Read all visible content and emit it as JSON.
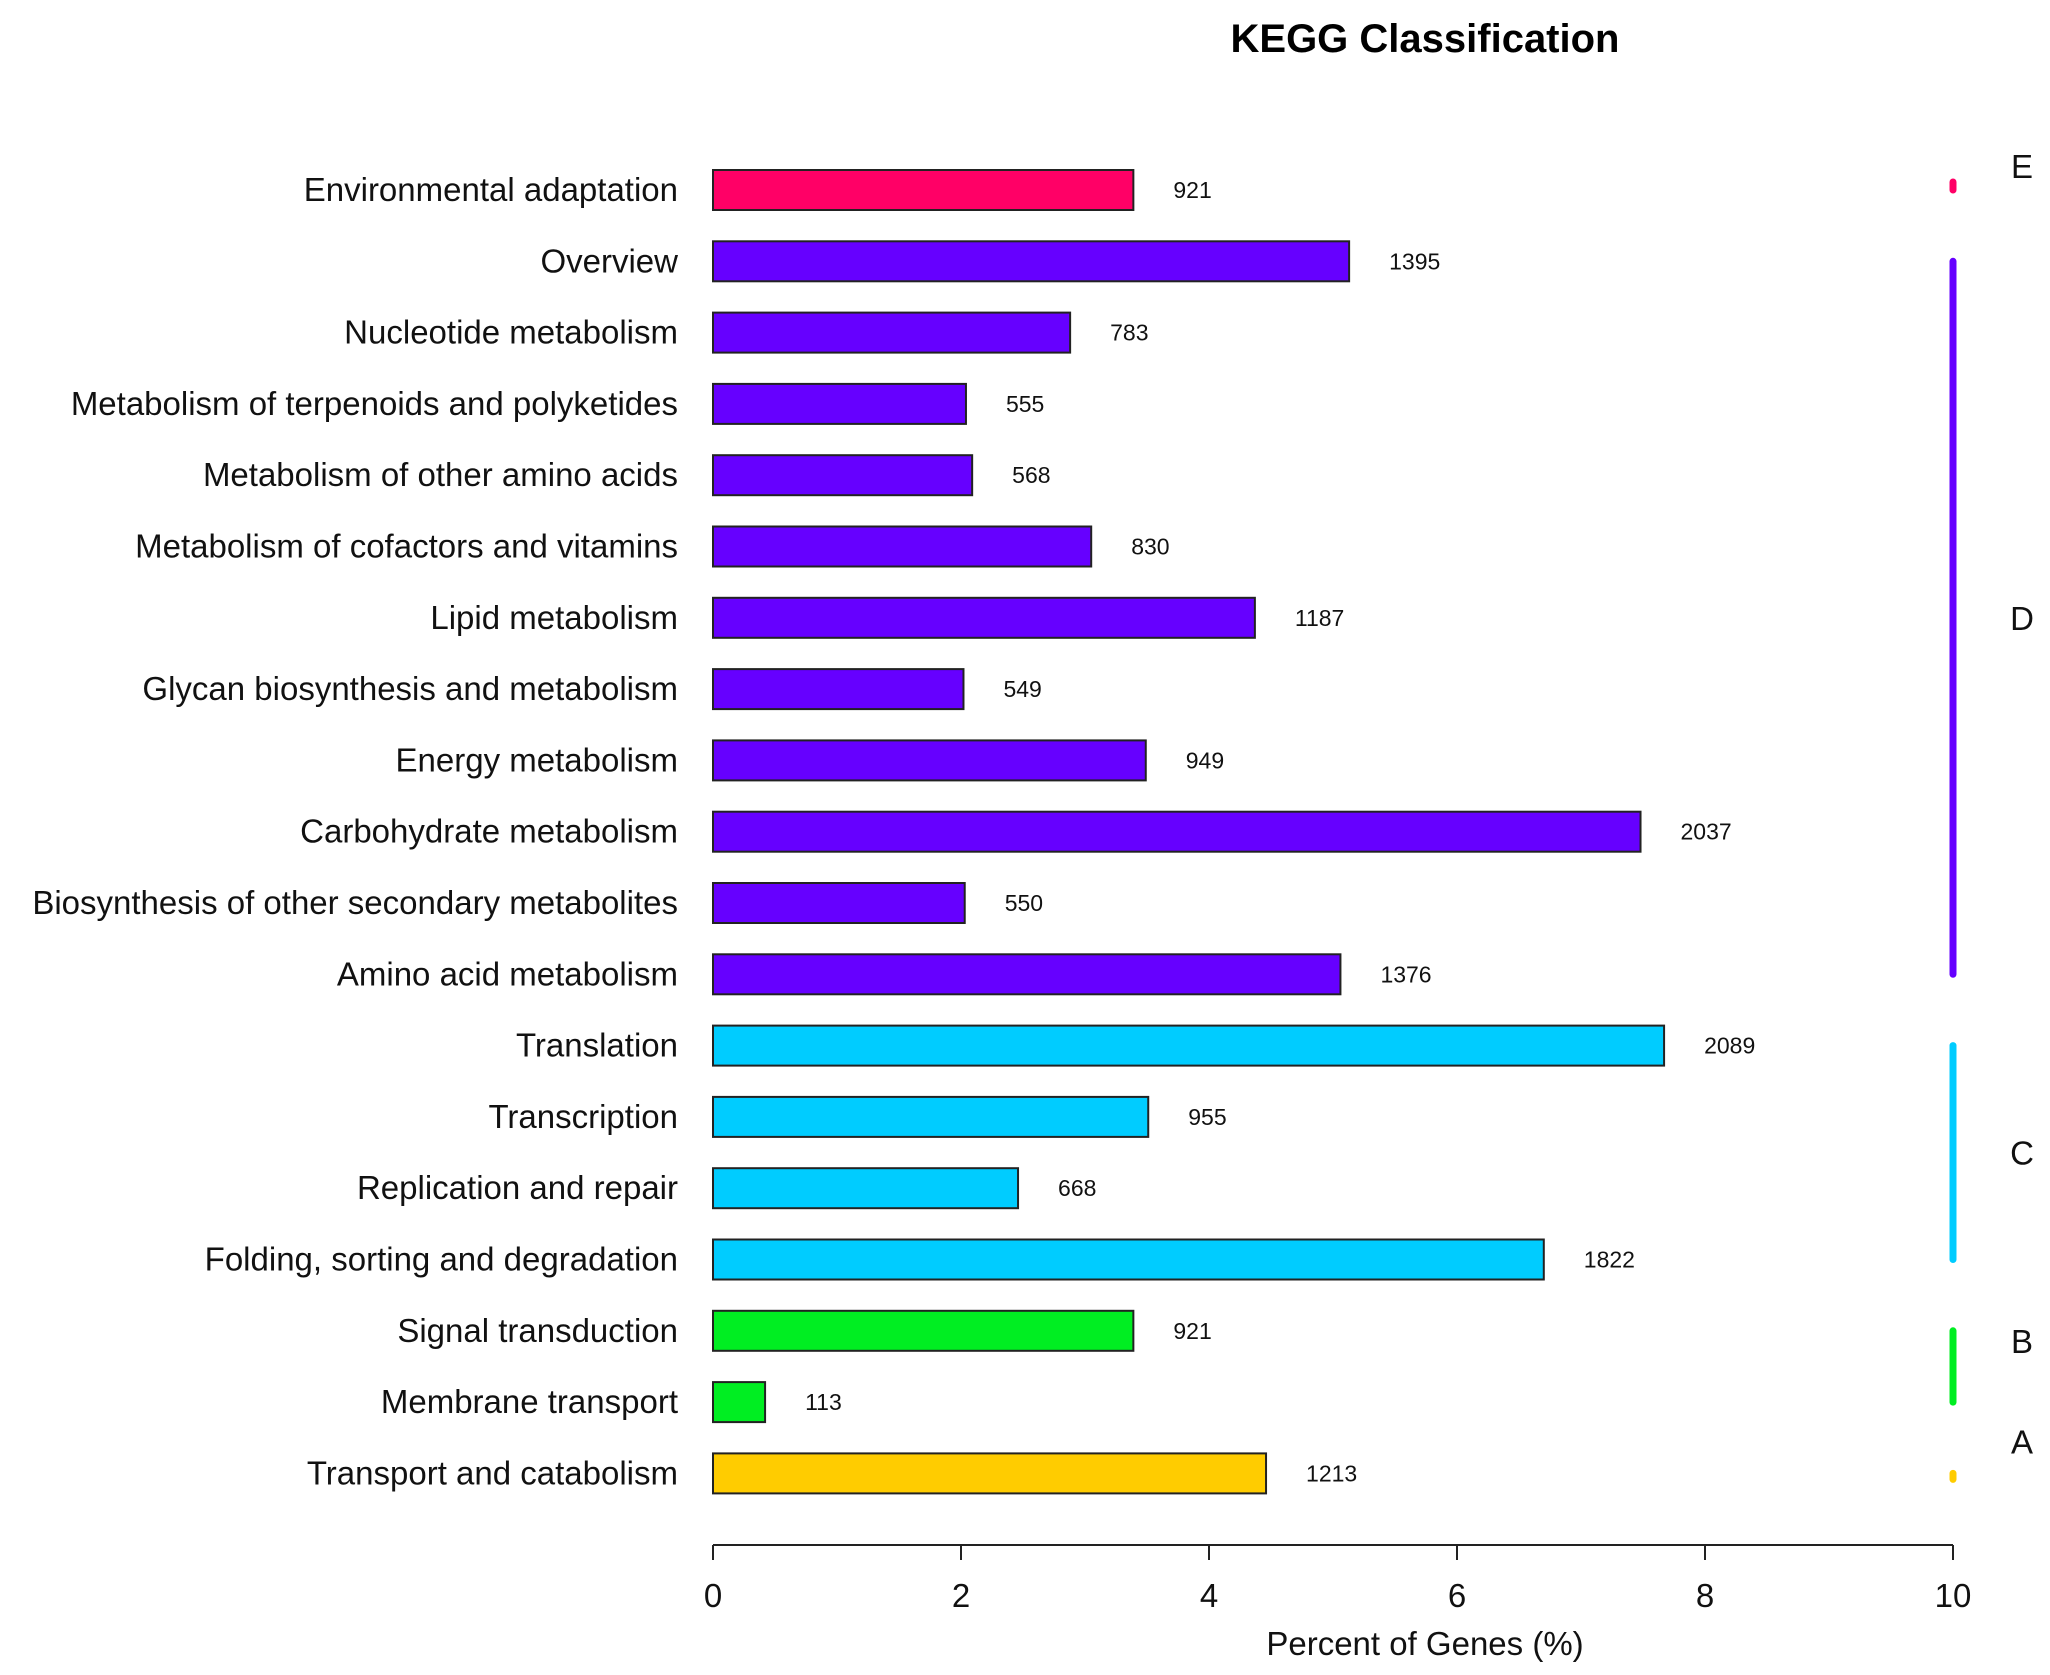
{
  "chart_data": {
    "type": "bar",
    "orientation": "horizontal",
    "title": "KEGG Classification",
    "xlabel": "Percent of Genes (%)",
    "ylabel": "",
    "xlim": [
      0,
      10
    ],
    "xticks": [
      0,
      2,
      4,
      6,
      8,
      10
    ],
    "grid": false,
    "categories": [
      "Environmental adaptation",
      "Overview",
      "Nucleotide metabolism",
      "Metabolism of terpenoids and polyketides",
      "Metabolism of other amino acids",
      "Metabolism of cofactors and vitamins",
      "Lipid metabolism",
      "Glycan biosynthesis and metabolism",
      "Energy metabolism",
      "Carbohydrate metabolism",
      "Biosynthesis of other secondary metabolites",
      "Amino acid metabolism",
      "Translation",
      "Transcription",
      "Replication and repair",
      "Folding, sorting and degradation",
      "Signal transduction",
      "Membrane transport",
      "Transport and catabolism"
    ],
    "values": [
      3.39,
      5.13,
      2.88,
      2.04,
      2.09,
      3.05,
      4.37,
      2.02,
      3.49,
      7.48,
      2.03,
      5.06,
      7.67,
      3.51,
      2.46,
      6.7,
      3.39,
      0.42,
      4.46
    ],
    "counts": [
      "921",
      "1395",
      "783",
      "555",
      "568",
      "830",
      "1187",
      "549",
      "949",
      "2037",
      "550",
      "1376",
      "2089",
      "955",
      "668",
      "1822",
      "921",
      "113",
      "1213"
    ],
    "groups": [
      "E",
      "D",
      "D",
      "D",
      "D",
      "D",
      "D",
      "D",
      "D",
      "D",
      "D",
      "D",
      "C",
      "C",
      "C",
      "C",
      "B",
      "B",
      "A"
    ],
    "group_legend": [
      {
        "label": "E",
        "color": "#ff0066"
      },
      {
        "label": "D",
        "color": "#6600ff"
      },
      {
        "label": "C",
        "color": "#00ccff"
      },
      {
        "label": "B",
        "color": "#00ee22"
      },
      {
        "label": "A",
        "color": "#ffcc00"
      }
    ]
  }
}
